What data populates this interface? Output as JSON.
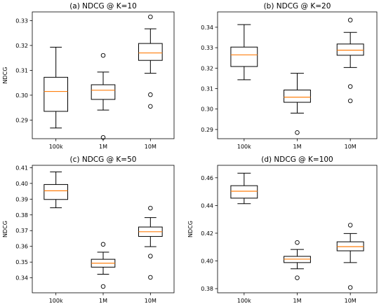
{
  "chart_data": [
    {
      "type": "box",
      "title": "(a) NDCG @ K=10",
      "ylabel": "NDCG",
      "xlabel": "",
      "categories": [
        "100k",
        "1M",
        "10M"
      ],
      "ylim": [
        0.2825,
        0.3335
      ],
      "yticks": [
        0.29,
        0.3,
        0.31,
        0.32,
        0.33
      ],
      "ytick_labels": [
        "0.29",
        "0.30",
        "0.31",
        "0.32",
        "0.33"
      ],
      "boxes": [
        {
          "whisker_low": 0.2868,
          "q1": 0.2935,
          "median": 0.3015,
          "q3": 0.3072,
          "whisker_high": 0.3193,
          "fliers": []
        },
        {
          "whisker_low": 0.294,
          "q1": 0.2983,
          "median": 0.302,
          "q3": 0.3042,
          "whisker_high": 0.3093,
          "fliers": [
            0.316,
            0.283
          ]
        },
        {
          "whisker_low": 0.3088,
          "q1": 0.314,
          "median": 0.317,
          "q3": 0.3208,
          "whisker_high": 0.3267,
          "fliers": [
            0.3315,
            0.3002,
            0.2955
          ]
        }
      ]
    },
    {
      "type": "box",
      "title": "(b) NDCG @ K=20",
      "ylabel": "",
      "xlabel": "",
      "categories": [
        "100k",
        "1M",
        "10M"
      ],
      "ylim": [
        0.2855,
        0.3475
      ],
      "yticks": [
        0.29,
        0.3,
        0.31,
        0.32,
        0.33,
        0.34
      ],
      "ytick_labels": [
        "0.29",
        "0.30",
        "0.31",
        "0.32",
        "0.33",
        "0.34"
      ],
      "boxes": [
        {
          "whisker_low": 0.3143,
          "q1": 0.3208,
          "median": 0.3265,
          "q3": 0.3303,
          "whisker_high": 0.3413,
          "fliers": []
        },
        {
          "whisker_low": 0.298,
          "q1": 0.3033,
          "median": 0.3058,
          "q3": 0.3093,
          "whisker_high": 0.3175,
          "fliers": [
            0.2885
          ]
        },
        {
          "whisker_low": 0.3203,
          "q1": 0.3263,
          "median": 0.3288,
          "q3": 0.3318,
          "whisker_high": 0.3375,
          "fliers": [
            0.3435,
            0.311,
            0.304
          ]
        }
      ]
    },
    {
      "type": "box",
      "title": "(c) NDCG @ K=50",
      "ylabel": "NDCG",
      "xlabel": "",
      "categories": [
        "100k",
        "1M",
        "10M"
      ],
      "ylim": [
        0.3305,
        0.4115
      ],
      "yticks": [
        0.34,
        0.35,
        0.36,
        0.37,
        0.38,
        0.39,
        0.4,
        0.41
      ],
      "ytick_labels": [
        "0.34",
        "0.35",
        "0.36",
        "0.37",
        "0.38",
        "0.39",
        "0.40",
        "0.41"
      ],
      "boxes": [
        {
          "whisker_low": 0.3845,
          "q1": 0.3898,
          "median": 0.3953,
          "q3": 0.3993,
          "whisker_high": 0.4073,
          "fliers": []
        },
        {
          "whisker_low": 0.3423,
          "q1": 0.3468,
          "median": 0.3493,
          "q3": 0.3518,
          "whisker_high": 0.3563,
          "fliers": [
            0.3613,
            0.3345
          ]
        },
        {
          "whisker_low": 0.3598,
          "q1": 0.3663,
          "median": 0.3693,
          "q3": 0.3723,
          "whisker_high": 0.3783,
          "fliers": [
            0.3843,
            0.3538,
            0.3403
          ]
        }
      ]
    },
    {
      "type": "box",
      "title": "(d) NDCG @ K=100",
      "ylabel": "NDCG",
      "xlabel": "",
      "categories": [
        "100k",
        "1M",
        "10M"
      ],
      "ylim": [
        0.377,
        0.469
      ],
      "yticks": [
        0.38,
        0.4,
        0.42,
        0.44,
        0.46
      ],
      "ytick_labels": [
        "0.38",
        "0.40",
        "0.42",
        "0.44",
        "0.46"
      ],
      "boxes": [
        {
          "whisker_low": 0.4413,
          "q1": 0.4453,
          "median": 0.4503,
          "q3": 0.4543,
          "whisker_high": 0.4633,
          "fliers": []
        },
        {
          "whisker_low": 0.3943,
          "q1": 0.3988,
          "median": 0.4013,
          "q3": 0.4033,
          "whisker_high": 0.4083,
          "fliers": [
            0.4133,
            0.3878
          ]
        },
        {
          "whisker_low": 0.3988,
          "q1": 0.4073,
          "median": 0.4103,
          "q3": 0.4138,
          "whisker_high": 0.4198,
          "fliers": [
            0.4258,
            0.3808
          ]
        }
      ]
    }
  ],
  "colors": {
    "median_line": "#ff7f0e",
    "box_edge": "#000000",
    "background": "#ffffff"
  }
}
